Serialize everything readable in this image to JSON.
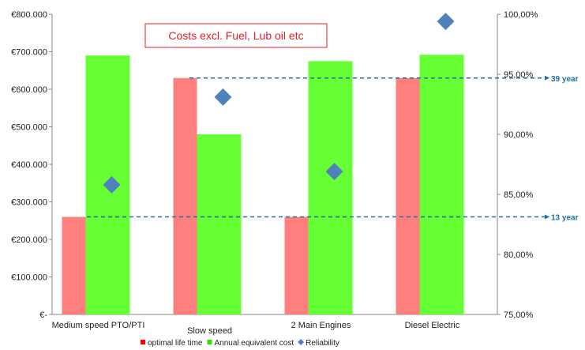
{
  "chart_data": {
    "type": "bar",
    "title": "Costs excl. Fuel, Lub oil etc",
    "categories": [
      "Medium speed PTO/PTI",
      "Slow speed",
      "2 Main Engines",
      "Diesel Electric"
    ],
    "series": [
      {
        "name": "optimal life time",
        "kind": "bar",
        "axis": "left",
        "color": "#ff7f7f",
        "values": [
          260000,
          630000,
          260000,
          630000
        ]
      },
      {
        "name": "Annual equivalent cost",
        "kind": "bar",
        "axis": "left",
        "color": "#66ff33",
        "values": [
          690000,
          480000,
          675000,
          692000
        ]
      },
      {
        "name": "Reliability",
        "kind": "scatter",
        "marker": "diamond",
        "axis": "right",
        "color": "#4f81bd",
        "values": [
          85.8,
          93.1,
          86.9,
          99.4
        ]
      }
    ],
    "y_left": {
      "min": 0,
      "max": 800000,
      "ticks": [
        {
          "value": 0,
          "label": "€-"
        },
        {
          "value": 100000,
          "label": "€100.000"
        },
        {
          "value": 200000,
          "label": "€200.000"
        },
        {
          "value": 300000,
          "label": "€300.000"
        },
        {
          "value": 400000,
          "label": "€400.000"
        },
        {
          "value": 500000,
          "label": "€500.000"
        },
        {
          "value": 600000,
          "label": "€600.000"
        },
        {
          "value": 700000,
          "label": "€700.000"
        },
        {
          "value": 800000,
          "label": "€800.000"
        }
      ]
    },
    "y_right": {
      "min": 75,
      "max": 100,
      "ticks": [
        {
          "value": 75,
          "label": "75,00%"
        },
        {
          "value": 80,
          "label": "80,00%"
        },
        {
          "value": 85,
          "label": "85,00%"
        },
        {
          "value": 90,
          "label": "90,00%"
        },
        {
          "value": 95,
          "label": "95,00%"
        },
        {
          "value": 100,
          "label": "100,00%"
        }
      ]
    },
    "reference_lines": [
      {
        "label": "39 year",
        "value": 630000,
        "color": "#1f6f9f"
      },
      {
        "label": "13 year",
        "value": 260000,
        "color": "#1f6f9f"
      }
    ],
    "grid": false,
    "legend_position": "bottom"
  }
}
